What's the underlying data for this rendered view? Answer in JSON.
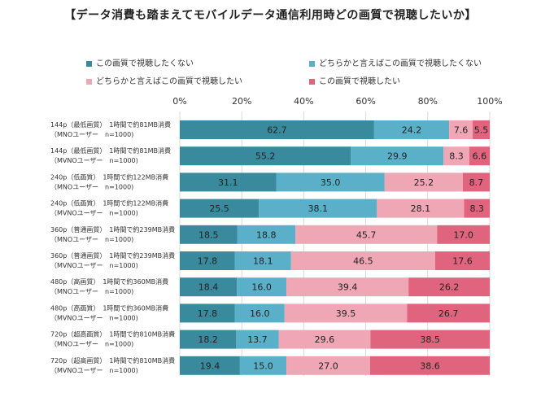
{
  "title": "【データ消費も踏まえてモバイルデータ通信利用時どの画質で視聴したいか】",
  "chart_data": {
    "type": "bar",
    "orientation": "horizontal",
    "stacked": true,
    "percent": true,
    "xlim": [
      0,
      100
    ],
    "xticks": [
      "0%",
      "20%",
      "40%",
      "60%",
      "80%",
      "100%"
    ],
    "legend_position": "top",
    "categories": [
      {
        "line1": "144p（最低画質）　1時間で約81MB消費",
        "line2": "（MNOユーザー　n=1000)"
      },
      {
        "line1": "144p（最低画質）　1時間で約81MB消費",
        "line2": "（MVNOユーザー　n=1000)"
      },
      {
        "line1": "240p（低画質）　1時間で約122MB消費",
        "line2": "（MNOユーザー　n=1000)"
      },
      {
        "line1": "240p（低画質）　1時間で約122MB消費",
        "line2": "（MVNOユーザー　n=1000)"
      },
      {
        "line1": "360p（普通画質）　1時間で約239MB消費",
        "line2": "（MNOユーザー　n=1000)"
      },
      {
        "line1": "360p（普通画質）　1時間で約239MB消費",
        "line2": "（MVNOユーザー　n=1000)"
      },
      {
        "line1": "480p（高画質）　1時間で約360MB消費",
        "line2": "（MNOユーザー　n=1000)"
      },
      {
        "line1": "480p（高画質）　1時間で約360MB消費",
        "line2": "（MVNOユーザー　n=1000)"
      },
      {
        "line1": "720p（超高画質）　1時間で約810MB消費",
        "line2": "（MNOユーザー　n=1000)"
      },
      {
        "line1": "720p（超高画質）　1時間で約810MB消費",
        "line2": "（MVNOユーザー　n=1000)"
      }
    ],
    "series": [
      {
        "name": "この画質で視聴したくない",
        "color": "#3a8a9e",
        "values": [
          62.7,
          55.2,
          31.1,
          25.5,
          18.5,
          17.8,
          18.4,
          17.8,
          18.2,
          19.4
        ]
      },
      {
        "name": "どちらかと言えばこの画質で視聴したくない",
        "color": "#5ab0c9",
        "values": [
          24.2,
          29.9,
          35.0,
          38.1,
          18.8,
          18.1,
          16.0,
          16.0,
          13.7,
          15.0
        ]
      },
      {
        "name": "どちらかと言えばこの画質で視聴したい",
        "color": "#efa7b5",
        "values": [
          7.6,
          8.3,
          25.2,
          28.1,
          45.7,
          46.5,
          39.4,
          39.5,
          29.6,
          27.0
        ]
      },
      {
        "name": "この画質で視聴したい",
        "color": "#e0647d",
        "values": [
          5.5,
          6.6,
          8.7,
          8.3,
          17.0,
          17.6,
          26.2,
          26.7,
          38.5,
          38.6
        ]
      }
    ]
  }
}
